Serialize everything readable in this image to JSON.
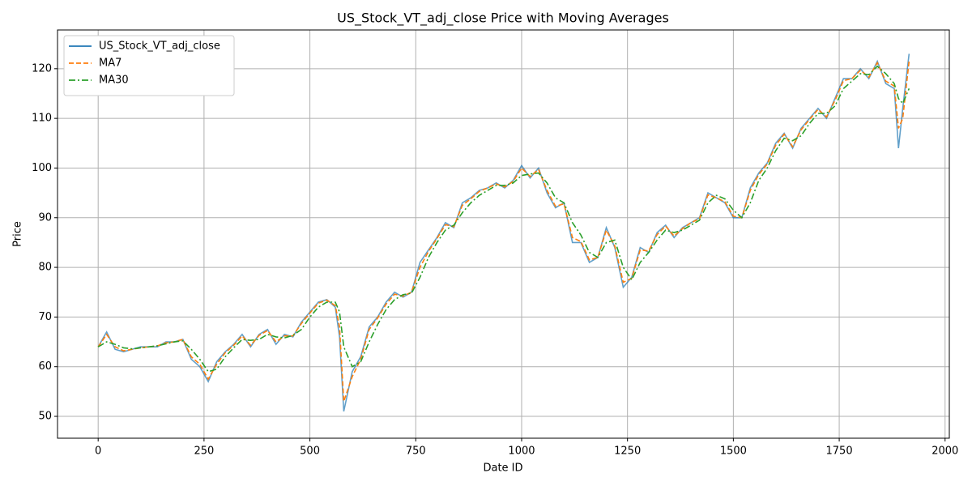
{
  "chart_data": {
    "type": "line",
    "title": "US_Stock_VT_adj_close Price with Moving Averages",
    "xlabel": "Date ID",
    "ylabel": "Price",
    "x": [
      0,
      20,
      40,
      60,
      80,
      100,
      120,
      140,
      160,
      180,
      200,
      220,
      240,
      260,
      280,
      300,
      320,
      340,
      360,
      380,
      400,
      420,
      440,
      460,
      480,
      500,
      520,
      540,
      560,
      570,
      580,
      600,
      620,
      640,
      660,
      680,
      700,
      720,
      740,
      760,
      780,
      800,
      820,
      840,
      860,
      880,
      900,
      920,
      940,
      960,
      980,
      1000,
      1020,
      1040,
      1060,
      1080,
      1100,
      1120,
      1140,
      1160,
      1180,
      1200,
      1220,
      1240,
      1260,
      1280,
      1300,
      1320,
      1340,
      1360,
      1380,
      1400,
      1420,
      1440,
      1460,
      1480,
      1500,
      1520,
      1540,
      1560,
      1580,
      1600,
      1620,
      1640,
      1660,
      1680,
      1700,
      1720,
      1740,
      1760,
      1780,
      1800,
      1820,
      1840,
      1860,
      1880,
      1890,
      1900,
      1915
    ],
    "series": [
      {
        "name": "US_Stock_VT_adj_close",
        "color": "#1f77b4",
        "dash": "solid",
        "values": [
          64,
          67,
          63.5,
          63,
          63.5,
          64,
          64,
          64,
          65,
          65,
          65.5,
          61.5,
          60,
          57,
          61,
          63,
          64.5,
          66.5,
          64,
          66.5,
          67.5,
          64.5,
          66.5,
          66,
          69,
          71,
          73,
          73.5,
          72,
          66,
          51,
          59,
          62,
          68,
          70,
          73,
          75,
          74,
          75,
          81,
          83.5,
          86,
          89,
          88,
          93,
          94,
          95.5,
          96,
          97,
          96,
          97.5,
          100.5,
          98,
          100,
          95,
          92,
          93,
          85,
          85,
          81,
          82,
          88,
          84,
          76,
          78,
          84,
          83,
          87,
          88.5,
          86,
          88,
          89,
          90,
          95,
          94,
          93,
          90,
          90,
          96,
          99,
          101,
          105,
          107,
          104,
          108,
          110,
          112,
          110,
          114,
          118,
          118,
          120,
          118,
          121.5,
          117,
          116,
          104,
          112,
          123
        ]
      },
      {
        "name": "MA7",
        "color": "#ff7f0e",
        "dash": "dashed",
        "values": [
          64,
          66.5,
          64,
          63.2,
          63.5,
          63.8,
          64,
          64.2,
          64.8,
          65,
          65.5,
          62,
          60.5,
          57.5,
          60.5,
          62.8,
          64.3,
          66.2,
          64.3,
          66.3,
          67.3,
          65,
          66.2,
          66.2,
          68.7,
          70.8,
          72.8,
          73.4,
          72.3,
          68,
          53,
          58,
          61.5,
          67.5,
          69.8,
          72.6,
          74.6,
          74.2,
          75,
          80,
          83.2,
          85.8,
          88.6,
          88.2,
          92.5,
          93.8,
          95.3,
          96,
          96.8,
          96.2,
          97.3,
          100,
          98.3,
          99.7,
          95.5,
          92.3,
          92.8,
          86,
          85.2,
          81.5,
          82,
          87.5,
          84.3,
          77,
          77.8,
          83.5,
          83.3,
          86.6,
          88.3,
          86.3,
          87.8,
          89,
          89.8,
          94.6,
          94,
          93.2,
          90.3,
          90,
          95.5,
          98.7,
          100.8,
          104.6,
          106.8,
          104.3,
          107.7,
          109.8,
          111.8,
          110.3,
          113.6,
          117.6,
          118,
          119.7,
          118.3,
          121.2,
          117.5,
          116.5,
          108,
          110,
          121.5
        ]
      },
      {
        "name": "MA30",
        "color": "#2ca02c",
        "dash": "dashdot",
        "values": [
          64,
          65,
          64.5,
          63.8,
          63.6,
          63.8,
          64,
          64.2,
          64.6,
          65,
          65.2,
          63.5,
          61.5,
          59,
          59.5,
          62,
          63.8,
          65.5,
          65.3,
          65.5,
          66.5,
          66,
          65.8,
          66.3,
          67.5,
          70,
          72,
          73,
          73,
          71,
          64,
          60,
          61,
          65,
          68.5,
          71.5,
          73.5,
          74.5,
          74.8,
          78,
          82,
          85,
          87.5,
          88.5,
          91,
          93,
          94.5,
          95.5,
          96.5,
          96.5,
          97,
          98.5,
          98.8,
          99,
          97,
          94,
          93,
          89,
          86.5,
          83,
          82,
          85,
          85.5,
          80,
          77.5,
          81,
          83,
          85.5,
          87.5,
          87,
          87.5,
          88.5,
          89.5,
          93,
          94.5,
          93.8,
          91.5,
          90,
          93,
          97.5,
          100,
          103.5,
          106,
          105.5,
          106.5,
          109,
          111,
          111,
          112.5,
          116,
          117.5,
          119,
          118.8,
          120.5,
          119,
          117,
          114,
          113,
          116
        ]
      }
    ],
    "xlim": [
      -96,
      2010
    ],
    "ylim": [
      45.6,
      127.8
    ],
    "xticks": [
      0,
      250,
      500,
      750,
      1000,
      1250,
      1500,
      1750,
      2000
    ],
    "yticks": [
      50,
      60,
      70,
      80,
      90,
      100,
      110,
      120
    ],
    "grid": true,
    "legend": "upper-left"
  }
}
